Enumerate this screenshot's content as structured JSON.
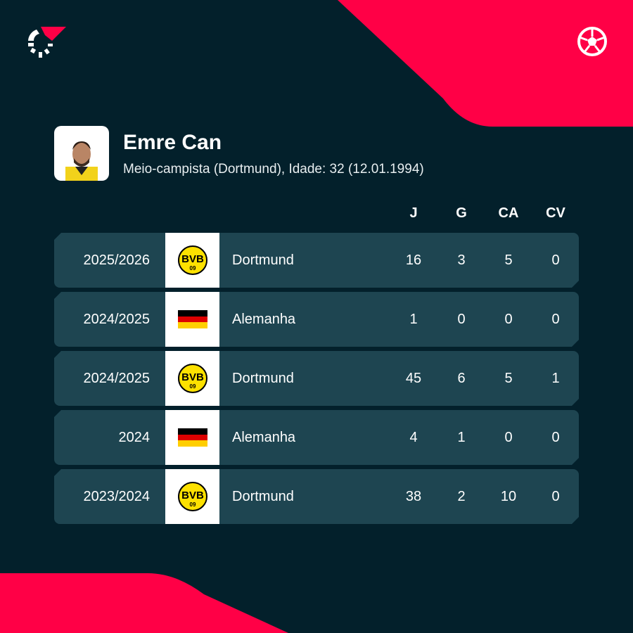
{
  "colors": {
    "background": "#03202b",
    "accent": "#ff0046",
    "row": "#1e4551"
  },
  "player": {
    "name": "Emre Can",
    "details": "Meio-campista (Dortmund), Idade: 32 (12.01.1994)"
  },
  "columns": [
    "J",
    "G",
    "CA",
    "CV"
  ],
  "rows": [
    {
      "season": "2025/2026",
      "team": "Dortmund",
      "crest": "bvb-crest-icon",
      "J": "16",
      "G": "3",
      "CA": "5",
      "CV": "0"
    },
    {
      "season": "2024/2025",
      "team": "Alemanha",
      "crest": "germany-flag-icon",
      "J": "1",
      "G": "0",
      "CA": "0",
      "CV": "0"
    },
    {
      "season": "2024/2025",
      "team": "Dortmund",
      "crest": "bvb-crest-icon",
      "J": "45",
      "G": "6",
      "CA": "5",
      "CV": "1"
    },
    {
      "season": "2024",
      "team": "Alemanha",
      "crest": "germany-flag-icon",
      "J": "4",
      "G": "1",
      "CA": "0",
      "CV": "0"
    },
    {
      "season": "2023/2024",
      "team": "Dortmund",
      "crest": "bvb-crest-icon",
      "J": "38",
      "G": "2",
      "CA": "10",
      "CV": "0"
    }
  ]
}
